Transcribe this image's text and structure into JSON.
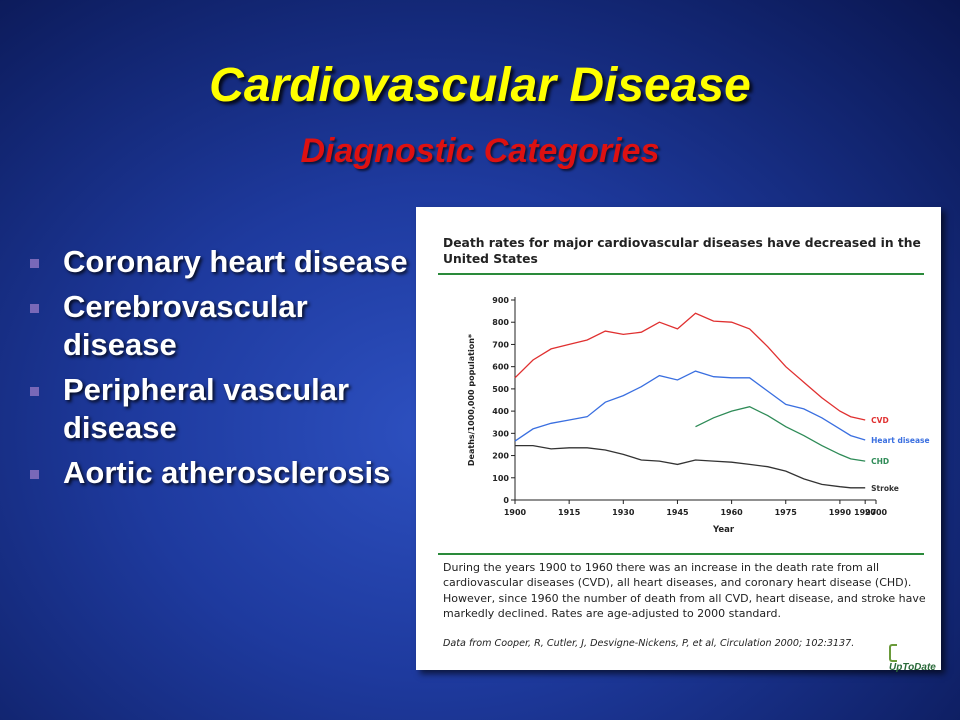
{
  "slide": {
    "title": "Cardiovascular Disease",
    "subtitle": "Diagnostic Categories",
    "bullets": [
      "Coronary heart disease",
      "Cerebrovascular disease",
      "Peripheral vascular disease",
      "Aortic atherosclerosis"
    ]
  },
  "panel": {
    "caption": "During the years 1900 to 1960 there was an increase in the death rate from all cardiovascular diseases (CVD), all heart diseases, and coronary heart disease (CHD). However, since 1960 the number of death from all CVD, heart disease, and stroke have markedly declined. Rates are age-adjusted to 2000 standard.",
    "source": "Data from Cooper, R, Cutler, J, Desvigne-Nickens, P, et al, Circulation 2000; 102:3137.",
    "logo": "UpToDate"
  },
  "colors": {
    "title": "#ffff00",
    "subtitle": "#dd1111",
    "cvd": "#e03030",
    "heart": "#3a6fe0",
    "chd": "#2e8b57",
    "stroke": "#333333",
    "rule": "#2a8a3a"
  },
  "chart_data": {
    "type": "line",
    "title": "Death rates for major cardiovascular diseases have decreased in the United States",
    "xlabel": "Year",
    "ylabel": "Deaths/1000,000 population*",
    "xlim": [
      1900,
      2000
    ],
    "ylim": [
      0,
      900
    ],
    "xticks": [
      "1900",
      "1915",
      "1930",
      "1945",
      "1960",
      "1975",
      "1990",
      "1997",
      "2000"
    ],
    "yticks": [
      "0",
      "100",
      "200",
      "300",
      "400",
      "500",
      "600",
      "700",
      "800",
      "900"
    ],
    "series": [
      {
        "name": "CVD",
        "x": [
          1900,
          1905,
          1910,
          1915,
          1920,
          1925,
          1930,
          1935,
          1940,
          1945,
          1950,
          1955,
          1960,
          1965,
          1970,
          1975,
          1980,
          1985,
          1990,
          1993,
          1997
        ],
        "y": [
          550,
          630,
          680,
          700,
          720,
          760,
          745,
          755,
          800,
          770,
          840,
          805,
          800,
          770,
          690,
          600,
          530,
          460,
          400,
          375,
          360
        ]
      },
      {
        "name": "Heart disease",
        "x": [
          1900,
          1905,
          1910,
          1915,
          1920,
          1925,
          1930,
          1935,
          1940,
          1945,
          1950,
          1955,
          1960,
          1965,
          1970,
          1975,
          1980,
          1985,
          1990,
          1993,
          1997
        ],
        "y": [
          265,
          320,
          345,
          360,
          375,
          440,
          470,
          510,
          560,
          540,
          580,
          555,
          550,
          550,
          490,
          430,
          410,
          370,
          320,
          290,
          270
        ]
      },
      {
        "name": "CHD",
        "x": [
          1950,
          1955,
          1960,
          1965,
          1970,
          1975,
          1980,
          1985,
          1990,
          1993,
          1997
        ],
        "y": [
          330,
          370,
          400,
          420,
          380,
          330,
          290,
          245,
          205,
          185,
          175
        ]
      },
      {
        "name": "Stroke",
        "x": [
          1900,
          1905,
          1910,
          1915,
          1920,
          1925,
          1930,
          1935,
          1940,
          1945,
          1950,
          1955,
          1960,
          1965,
          1970,
          1975,
          1980,
          1985,
          1990,
          1993,
          1997
        ],
        "y": [
          245,
          245,
          230,
          235,
          235,
          225,
          205,
          180,
          175,
          160,
          180,
          175,
          170,
          160,
          150,
          130,
          95,
          70,
          60,
          55,
          55
        ]
      }
    ]
  }
}
